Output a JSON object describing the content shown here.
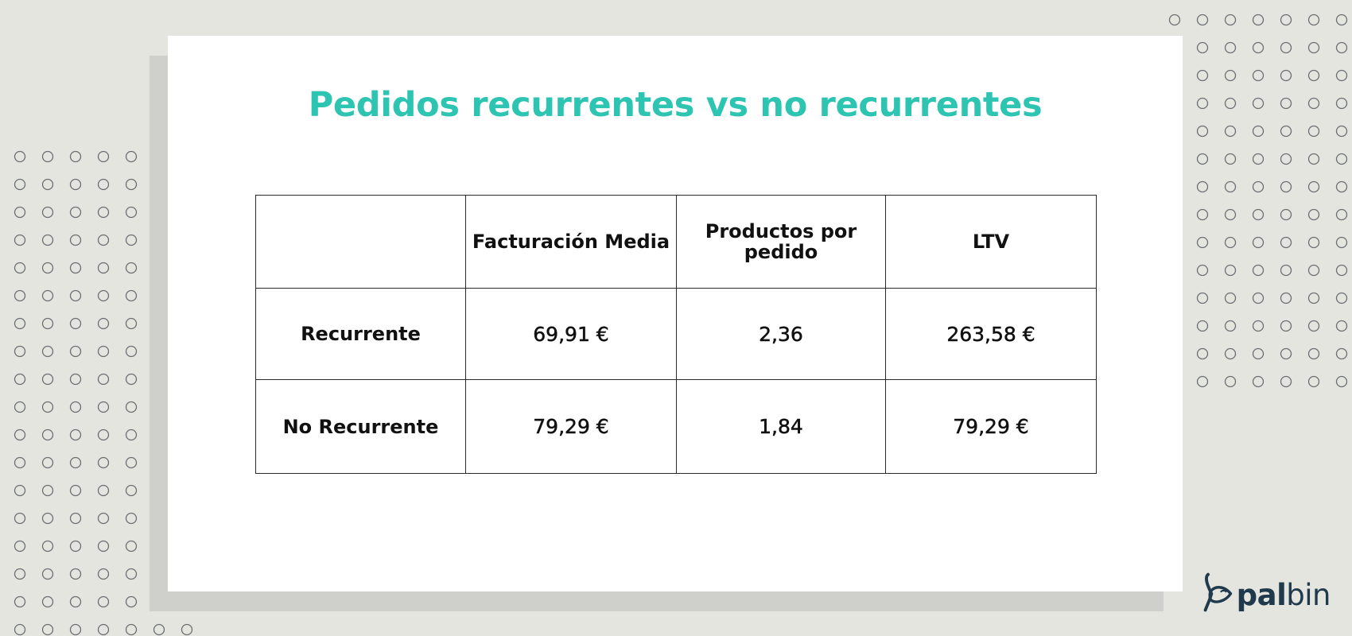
{
  "slide": {
    "title": "Pedidos recurrentes vs no recurrentes",
    "title_color": "#2ec4b2",
    "background_color": "#e5e5e0",
    "card_color": "#ffffff",
    "shadow_color": "#cfcfcb"
  },
  "table": {
    "headers": [
      "",
      "Facturación Media",
      "Productos por pedido",
      "LTV"
    ],
    "rows": [
      {
        "label": "Recurrente",
        "facturacion_media": "69,91 €",
        "productos_por_pedido": "2,36",
        "ltv": "263,58 €"
      },
      {
        "label": "No Recurrente",
        "facturacion_media": "79,29 €",
        "productos_por_pedido": "1,84",
        "ltv": "79,29 €"
      }
    ]
  },
  "logo": {
    "icon": "palbin-fish-icon",
    "text_bold": "pal",
    "text_light": "bin",
    "color": "#1f3a4c"
  },
  "decor": {
    "pattern_icon": "circle-dot-pattern",
    "dot_color": "#6b6f73"
  }
}
